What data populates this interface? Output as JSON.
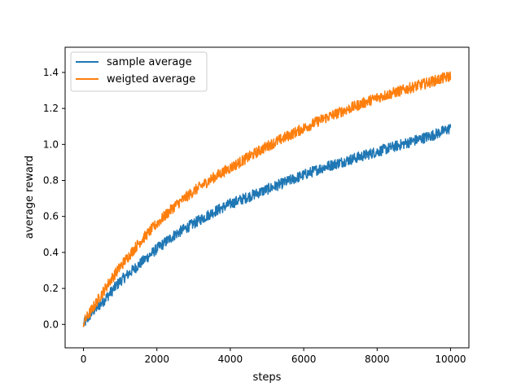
{
  "chart_data": {
    "type": "line",
    "title": "",
    "xlabel": "steps",
    "ylabel": "average reward",
    "xlim": [
      -500,
      10500
    ],
    "ylim": [
      -0.13,
      1.54
    ],
    "xticks": [
      0,
      2000,
      4000,
      6000,
      8000,
      10000
    ],
    "xtick_labels": [
      "0",
      "2000",
      "4000",
      "6000",
      "8000",
      "10000"
    ],
    "yticks": [
      0.0,
      0.2,
      0.4,
      0.6,
      0.8,
      1.0,
      1.2,
      1.4
    ],
    "ytick_labels": [
      "0.0",
      "0.2",
      "0.4",
      "0.6",
      "0.8",
      "1.0",
      "1.2",
      "1.4"
    ],
    "grid": false,
    "legend_position": "upper-left",
    "x": [
      0,
      250,
      500,
      750,
      1000,
      1500,
      2000,
      2500,
      3000,
      3500,
      4000,
      4500,
      5000,
      5500,
      6000,
      6500,
      7000,
      7500,
      8000,
      8500,
      9000,
      9500,
      10000
    ],
    "series": [
      {
        "name": "sample average",
        "color": "#1f77b4",
        "noise_band": 0.03,
        "values": [
          0.0,
          0.07,
          0.12,
          0.18,
          0.24,
          0.33,
          0.42,
          0.5,
          0.56,
          0.62,
          0.67,
          0.71,
          0.75,
          0.79,
          0.83,
          0.87,
          0.9,
          0.93,
          0.96,
          0.99,
          1.02,
          1.05,
          1.09
        ]
      },
      {
        "name": "weigted average",
        "color": "#ff7f0e",
        "noise_band": 0.03,
        "values": [
          0.01,
          0.09,
          0.17,
          0.25,
          0.32,
          0.45,
          0.56,
          0.66,
          0.74,
          0.81,
          0.87,
          0.93,
          0.99,
          1.04,
          1.09,
          1.14,
          1.18,
          1.22,
          1.26,
          1.29,
          1.32,
          1.35,
          1.38
        ]
      }
    ]
  }
}
